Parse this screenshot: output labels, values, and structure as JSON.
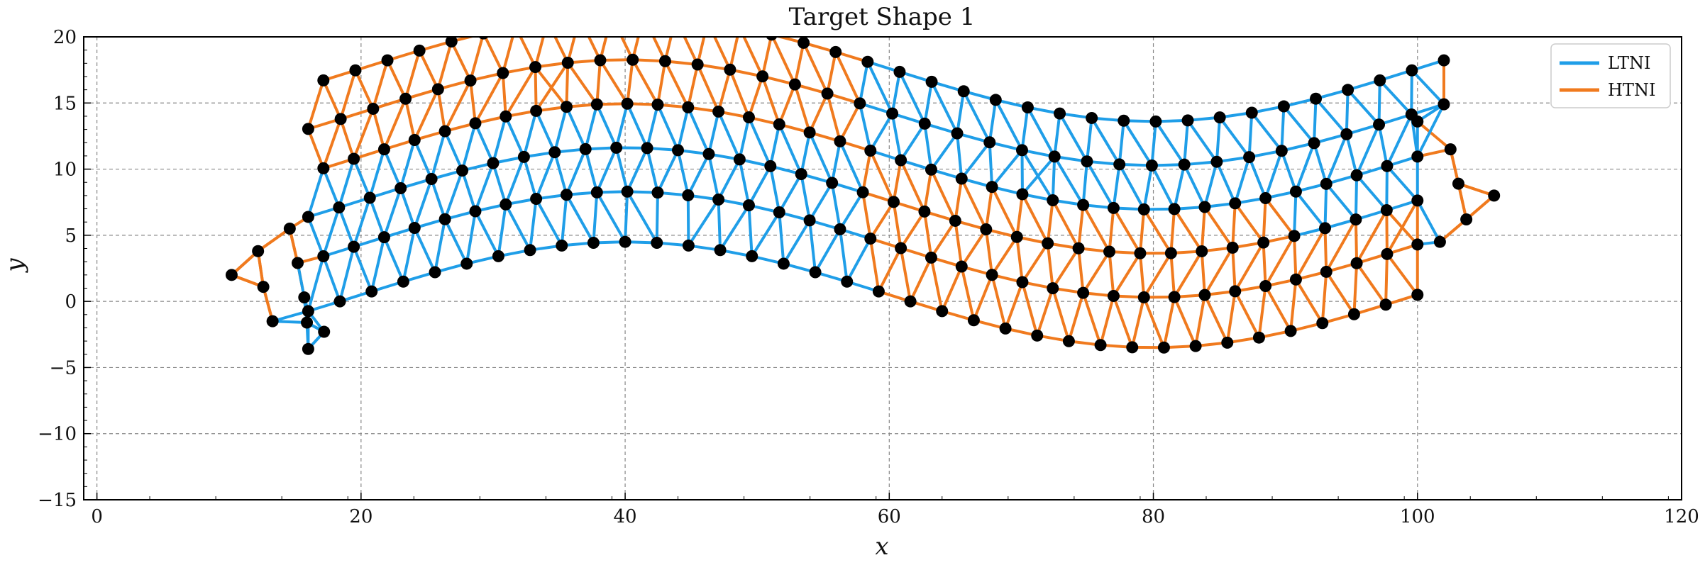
{
  "chart_data": {
    "type": "network-scatter",
    "title": "Target Shape 1",
    "xlabel": "x",
    "ylabel": "y",
    "xlim": [
      -1,
      120
    ],
    "ylim": [
      -15,
      20
    ],
    "x_ticks": [
      0,
      20,
      40,
      60,
      80,
      100,
      120
    ],
    "y_ticks": [
      -15,
      -10,
      -5,
      0,
      5,
      10,
      15,
      20
    ],
    "grid": true,
    "legend_position": "top-right",
    "colors": {
      "LTNI": "#1f9ee8",
      "HTNI": "#f07a1e",
      "node": "#000000"
    },
    "series": [
      {
        "name": "LTNI",
        "color": "#1f9ee8"
      },
      {
        "name": "HTNI",
        "color": "#f07a1e"
      }
    ],
    "lattice": {
      "description_rows": "6 rows of nodes following a sinusoidal band; row 0 lowest",
      "rows": [
        {
          "offset": 0.0,
          "count": 36
        },
        {
          "offset": 4.0,
          "count": 37
        },
        {
          "offset": 7.5,
          "count": 37
        },
        {
          "offset": 11.0,
          "count": 37
        },
        {
          "offset": 14.5,
          "count": 36
        },
        {
          "offset": 18.0,
          "count": 36
        }
      ],
      "x_start": 16.0,
      "x_end": 100.0,
      "curve": {
        "base": 5.0,
        "amp": 4.0,
        "phase_x": 40.0,
        "period": 80.0
      },
      "extra_nodes": [
        [
          10.2,
          2.0
        ],
        [
          12.2,
          3.8
        ],
        [
          12.6,
          1.1
        ],
        [
          13.3,
          -1.5
        ],
        [
          14.6,
          5.5
        ],
        [
          15.2,
          2.9
        ],
        [
          15.7,
          0.3
        ],
        [
          16.0,
          -3.6
        ],
        [
          15.9,
          -1.6
        ],
        [
          17.2,
          -2.3
        ],
        [
          103.1,
          8.9
        ],
        [
          103.7,
          6.2
        ],
        [
          105.8,
          8.0
        ],
        [
          101.7,
          4.5
        ],
        [
          102.5,
          11.5
        ],
        [
          100.0,
          13.6
        ]
      ],
      "ltni_bands": [
        {
          "x_from": 14,
          "x_to": 58,
          "rows_from": 0,
          "rows_to": 2
        },
        {
          "x_from": 58,
          "x_to": 96,
          "rows_from": 3,
          "rows_to": 5
        },
        {
          "x_from": 90,
          "x_to": 101,
          "rows_from": 2,
          "rows_to": 5
        }
      ]
    }
  }
}
